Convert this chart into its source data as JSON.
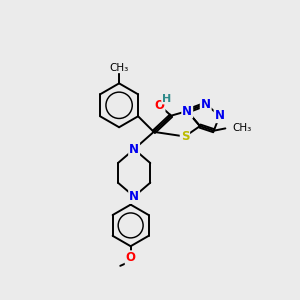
{
  "background_color": "#ebebeb",
  "bond_color": "#000000",
  "atom_colors": {
    "N": "#0000ee",
    "O": "#ff0000",
    "S": "#bbbb00",
    "H": "#2e8b8b",
    "C": "#000000"
  },
  "bond_width": 1.4,
  "font_size_atom": 8.5,
  "figsize": [
    3.0,
    3.0
  ],
  "dpi": 100
}
